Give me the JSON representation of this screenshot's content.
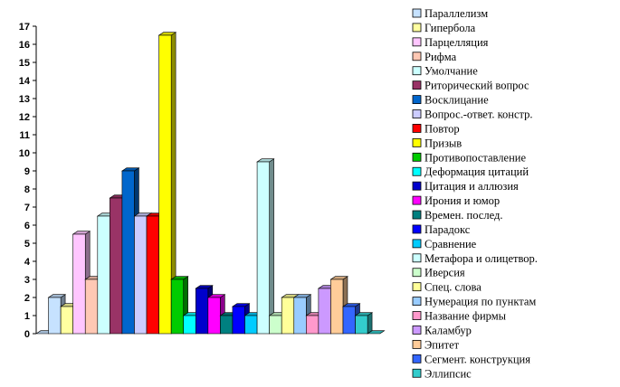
{
  "chart_data": {
    "type": "bar",
    "title": "",
    "xlabel": "",
    "ylabel": "",
    "ylim": [
      0,
      17
    ],
    "y_ticks": [
      "0",
      "1",
      "2",
      "3",
      "4",
      "5",
      "6",
      "7",
      "8",
      "9",
      "10",
      "11",
      "12",
      "13",
      "14",
      "15",
      "16",
      "17"
    ],
    "grid": false,
    "legend_placement": "right",
    "bars": [
      {
        "value": 0,
        "series": 0
      },
      {
        "value": 2,
        "series": 0
      },
      {
        "value": 1.5,
        "series": 1
      },
      {
        "value": 5.5,
        "series": 2
      },
      {
        "value": 3,
        "series": 3
      },
      {
        "value": 6.5,
        "series": 4
      },
      {
        "value": 7.5,
        "series": 5
      },
      {
        "value": 9,
        "series": 6
      },
      {
        "value": 6.5,
        "series": 7
      },
      {
        "value": 6.5,
        "series": 8
      },
      {
        "value": 16.5,
        "series": 9
      },
      {
        "value": 3,
        "series": 10
      },
      {
        "value": 1,
        "series": 11
      },
      {
        "value": 2.5,
        "series": 12
      },
      {
        "value": 2,
        "series": 13
      },
      {
        "value": 1,
        "series": 14
      },
      {
        "value": 1.5,
        "series": 15
      },
      {
        "value": 1,
        "series": 16
      },
      {
        "value": 9.5,
        "series": 17
      },
      {
        "value": 1,
        "series": 18
      },
      {
        "value": 2,
        "series": 19
      },
      {
        "value": 2,
        "series": 20
      },
      {
        "value": 1,
        "series": 21
      },
      {
        "value": 2.5,
        "series": 22
      },
      {
        "value": 3,
        "series": 23
      },
      {
        "value": 1.5,
        "series": 24
      },
      {
        "value": 1,
        "series": 25
      },
      {
        "value": 0,
        "series": 25
      }
    ],
    "series": [
      {
        "name": "Параллелизм",
        "color": "#c6e2ff"
      },
      {
        "name": "Гипербола",
        "color": "#ffffa0"
      },
      {
        "name": "Парцелляция",
        "color": "#ffc6ff"
      },
      {
        "name": "Рифма",
        "color": "#ffc8b4"
      },
      {
        "name": "Умолчание",
        "color": "#ccffff"
      },
      {
        "name": "Риторический вопрос",
        "color": "#993366"
      },
      {
        "name": "Восклицание",
        "color": "#0066cc"
      },
      {
        "name": "Вопрос.-ответ. констр.",
        "color": "#ccccff"
      },
      {
        "name": "Повтор",
        "color": "#ff0000"
      },
      {
        "name": "Призыв",
        "color": "#ffff00"
      },
      {
        "name": "Противопоставление",
        "color": "#00cc00"
      },
      {
        "name": "Деформация цитаций",
        "color": "#00ffff"
      },
      {
        "name": "Цитация и аллюзия",
        "color": "#0000cc"
      },
      {
        "name": "Ирония и юмор",
        "color": "#ff00ff"
      },
      {
        "name": "Времен. послед.",
        "color": "#008080"
      },
      {
        "name": "Парадокс",
        "color": "#0000ff"
      },
      {
        "name": "Сравнение",
        "color": "#00ccff"
      },
      {
        "name": "Метафора и олицетвор.",
        "color": "#ccffff"
      },
      {
        "name": "Иверсия",
        "color": "#ccffcc"
      },
      {
        "name": "Спец. слова",
        "color": "#ffff99"
      },
      {
        "name": "Нумерация по пунктам",
        "color": "#99ccff"
      },
      {
        "name": "Название фирмы",
        "color": "#ff99cc"
      },
      {
        "name": "Каламбур",
        "color": "#cc99ff"
      },
      {
        "name": "Эпитет",
        "color": "#ffcc99"
      },
      {
        "name": "Сегмент. конструкция",
        "color": "#3366ff"
      },
      {
        "name": "Эллипсис",
        "color": "#33cccc"
      }
    ]
  }
}
